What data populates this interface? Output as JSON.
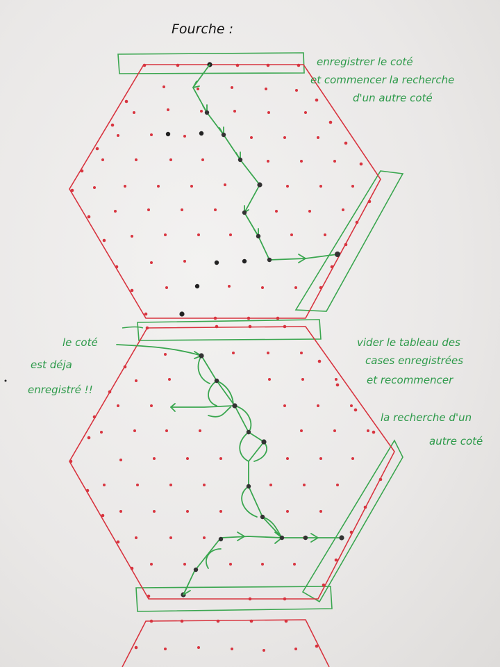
{
  "title": "Fourche :",
  "notes": {
    "top_right": [
      "enregistrer le coté",
      "et commencer la recherche",
      "d'un autre coté"
    ],
    "middle_left": [
      "le coté",
      "est déja",
      "enregistré !!"
    ],
    "middle_right": [
      "vider le tableau des",
      "cases enregistrées",
      "et recommencer",
      "la recherche d'un",
      "autre coté"
    ]
  },
  "colors": {
    "hexagon": "#d8343f",
    "grid_dot": "#d8343f",
    "path": "#3aa64f",
    "visited_dot": "#222222",
    "title": "#111111",
    "notes": "#2d9a4a"
  }
}
